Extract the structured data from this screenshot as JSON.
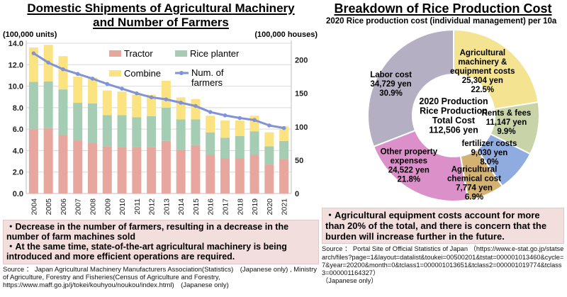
{
  "left_panel": {
    "title_line1": "Domestic Shipments of Agricultural Machinery",
    "title_line2": "and Number of Farmers",
    "left_axis_caption": "(100,000 units)",
    "right_axis_caption": "(100,000 houses)",
    "bullets": [
      "・Decrease in the number of farmers, resulting in a decrease in the number of farm machines sold",
      "・At the same time, state-of-the-art agricultural machinery is being introduced and more efficient operations are required."
    ],
    "source": "Source ： Japan Agricultural Machinery Manufacturers Association(Statistics)　(Japanese only) , Ministry of Agriculture, Forestry and Fisheries(Census of Agriculture and Forestry, https://www.maff.go.jp/j/tokei/kouhyou/noukou/index.html)　(Japanese only)"
  },
  "right_panel": {
    "title": "Breakdown of Rice Production Cost",
    "subtitle": "2020 Rice production cost (individual management) per 10a",
    "bullet": "・Agricultural equipment costs account for more than 20% of the total, and there is concern that the burden will increase further in the future.",
    "source_main": "Source ： Portal Site of Official Statistics of Japan （https://www.e-stat.go.jp/statsearch/files?page=1&layout=datalist&toukei=00500201&tstat=000001013460&cycle=7&year=20200&month=0&tclass1=000001013651&tclass2=000001019774&tclass3=000001164327）",
    "source_note": "（Japanese only）"
  },
  "chart_data": [
    {
      "type": "bar",
      "subtype": "stacked-bars-with-line",
      "title": "Domestic Shipments of Agricultural Machinery and Number of Farmers",
      "categories": [
        2004,
        2005,
        2006,
        2007,
        2008,
        2009,
        2010,
        2011,
        2012,
        2013,
        2014,
        2015,
        2016,
        2017,
        2018,
        2019,
        2020,
        2021
      ],
      "series": [
        {
          "name": "Tractor",
          "color": "#E8A79E",
          "values": [
            6.0,
            6.1,
            5.45,
            4.95,
            4.75,
            4.4,
            4.35,
            4.35,
            4.3,
            4.9,
            4.1,
            4.5,
            3.6,
            3.3,
            3.3,
            3.6,
            2.7,
            3.2
          ]
        },
        {
          "name": "Rice planter",
          "color": "#A5CDB4",
          "values": [
            4.4,
            4.35,
            4.25,
            3.5,
            3.65,
            2.9,
            2.95,
            2.75,
            2.9,
            3.1,
            2.8,
            2.4,
            2.1,
            1.9,
            2.05,
            2.2,
            1.7,
            1.7
          ]
        },
        {
          "name": "Combine",
          "color": "#FBE381",
          "values": [
            3.2,
            3.4,
            3.1,
            2.45,
            2.4,
            2.3,
            2.2,
            2.1,
            2.0,
            2.5,
            2.05,
            1.9,
            1.55,
            1.6,
            1.45,
            1.45,
            1.3,
            1.35
          ]
        }
      ],
      "line_series": {
        "name": "Num. of farmers",
        "legend_lines": [
          "Num. of",
          "farmers"
        ],
        "color": "#8093D6",
        "axis": "right",
        "values": [
          210,
          196,
          186,
          179,
          172,
          164,
          157,
          150,
          144,
          141,
          136,
          131,
          122,
          117,
          113,
          110,
          102,
          98
        ]
      },
      "left_axis": {
        "caption": "(100,000 units)",
        "min": 0,
        "max": 14,
        "step": 2,
        "tick_format": "0.0"
      },
      "right_axis": {
        "caption": "(100,000 houses)",
        "min": 0,
        "max": 225,
        "ticks": [
          0,
          50,
          100,
          150,
          200
        ]
      },
      "grid": true,
      "legend_position": "top-right-inside"
    },
    {
      "type": "pie",
      "subtype": "donut",
      "title": "Breakdown of Rice Production Cost",
      "center_label_lines": [
        "2020 Production",
        "Rice Production",
        "Total Cost",
        "112,506 yen"
      ],
      "total_cost_yen": "112,506",
      "slices": [
        {
          "label": "Agricultural machinery & equipment costs",
          "value_yen": "25,304",
          "percent": 22.5,
          "color": "#F4E391",
          "label_lines": [
            "Agricultural",
            "machinery &",
            "equipment costs",
            "25,304 yen",
            "22.5%"
          ],
          "label_angle_deg": 33,
          "label_r": 0.62
        },
        {
          "label": "Rents & fees",
          "value_yen": "11,147",
          "percent": 9.9,
          "color": "#C8D3A8",
          "label_lines": [
            "Rents & fees",
            "11,147 yen",
            "9.9%"
          ],
          "label_angle_deg": 97,
          "label_r": 0.62
        },
        {
          "label": "fertilizer costs",
          "value_yen": "9,030",
          "percent": 8.0,
          "color": "#8FABDF",
          "label_lines": [
            "fertilizer costs",
            "9,030 yen",
            "8.0%"
          ],
          "label_angle_deg": 136,
          "label_r": 0.6
        },
        {
          "label": "Agricultural chemical cost",
          "value_yen": "7,774",
          "percent": 6.9,
          "color": "#D4B272",
          "label_lines": [
            "Agricultural",
            "chemical cost",
            "7,774 yen",
            "6.9%"
          ],
          "label_angle_deg": 163,
          "label_r": 0.82
        },
        {
          "label": "Other property expenses",
          "value_yen": "24,522",
          "percent": 21.8,
          "color": "#DC90C9",
          "label_lines": [
            "Other property",
            "expenses",
            "24,522 yen",
            "21.8%"
          ],
          "label_angle_deg": 222,
          "label_r": 0.78
        },
        {
          "label": "Labor cost",
          "value_yen": "34,729",
          "percent": 30.9,
          "color": "#B5AFC4",
          "label_lines": [
            "Labor cost",
            "34,729 yen",
            "30.9%"
          ],
          "label_angle_deg": 297,
          "label_r": 0.82
        }
      ]
    }
  ]
}
